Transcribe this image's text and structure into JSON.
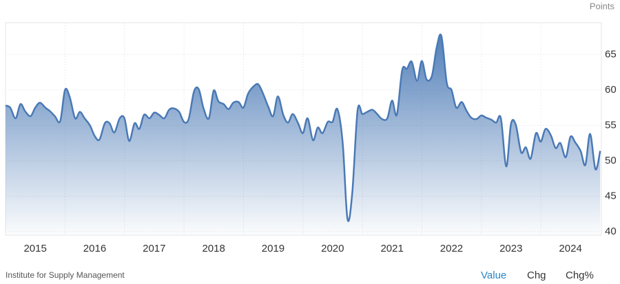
{
  "chart_data": {
    "type": "area",
    "y_unit": "Points",
    "source": "Institute for Supply Management",
    "buttons": [
      "Value",
      "Chg",
      "Chg%"
    ],
    "color": "#4a79b5",
    "grid": true,
    "xlim": [
      2014.5,
      2024.52
    ],
    "ylim": [
      39.5,
      69.5
    ],
    "xticks": [
      2015,
      2016,
      2017,
      2018,
      2019,
      2020,
      2021,
      2022,
      2023,
      2024
    ],
    "yticks": [
      40,
      45,
      50,
      55,
      60,
      65
    ],
    "x": [
      2014.5,
      2014.58,
      2014.67,
      2014.75,
      2014.83,
      2014.92,
      2015,
      2015.08,
      2015.17,
      2015.25,
      2015.33,
      2015.42,
      2015.5,
      2015.58,
      2015.67,
      2015.75,
      2015.83,
      2015.92,
      2016,
      2016.08,
      2016.17,
      2016.25,
      2016.33,
      2016.42,
      2016.5,
      2016.58,
      2016.67,
      2016.75,
      2016.83,
      2016.92,
      2017,
      2017.08,
      2017.17,
      2017.25,
      2017.33,
      2017.42,
      2017.5,
      2017.58,
      2017.67,
      2017.75,
      2017.83,
      2017.92,
      2018,
      2018.08,
      2018.17,
      2018.25,
      2018.33,
      2018.42,
      2018.5,
      2018.58,
      2018.67,
      2018.75,
      2018.83,
      2018.92,
      2019,
      2019.08,
      2019.17,
      2019.25,
      2019.33,
      2019.42,
      2019.5,
      2019.58,
      2019.67,
      2019.75,
      2019.83,
      2019.92,
      2020,
      2020.08,
      2020.17,
      2020.25,
      2020.33,
      2020.42,
      2020.5,
      2020.58,
      2020.67,
      2020.75,
      2020.83,
      2020.92,
      2021,
      2021.08,
      2021.17,
      2021.25,
      2021.33,
      2021.42,
      2021.5,
      2021.58,
      2021.67,
      2021.75,
      2021.83,
      2021.92,
      2022,
      2022.08,
      2022.17,
      2022.25,
      2022.33,
      2022.42,
      2022.5,
      2022.58,
      2022.67,
      2022.75,
      2022.83,
      2022.92,
      2023,
      2023.08,
      2023.17,
      2023.25,
      2023.33,
      2023.42,
      2023.5,
      2023.58,
      2023.67,
      2023.75,
      2023.83,
      2023.92,
      2024,
      2024.08,
      2024.17,
      2024.25,
      2024.33,
      2024.42,
      2024.5
    ],
    "values": [
      57.8,
      57.5,
      56.0,
      58.0,
      57.0,
      56.3,
      57.5,
      58.2,
      57.5,
      57.0,
      56.3,
      55.6,
      60.0,
      59.0,
      56.0,
      56.9,
      56.0,
      55.0,
      53.5,
      53.0,
      55.3,
      55.3,
      54.0,
      56.0,
      56.0,
      52.8,
      55.3,
      54.5,
      56.5,
      56.0,
      56.8,
      56.5,
      56.0,
      57.2,
      57.4,
      56.9,
      55.5,
      55.9,
      59.8,
      60.1,
      57.4,
      56.0,
      59.9,
      58.4,
      58.0,
      57.3,
      58.2,
      58.3,
      57.5,
      59.5,
      60.5,
      60.8,
      59.5,
      57.6,
      56.3,
      59.1,
      56.5,
      55.4,
      56.6,
      55.3,
      53.9,
      56.0,
      52.9,
      54.7,
      53.9,
      55.5,
      55.5,
      57.3,
      52.5,
      41.8,
      45.4,
      57.1,
      56.6,
      56.9,
      57.2,
      56.6,
      55.9,
      56.0,
      58.5,
      56.5,
      62.8,
      63.0,
      64.0,
      61.3,
      64.1,
      61.5,
      62.0,
      66.0,
      67.6,
      61.0,
      60.0,
      57.5,
      58.3,
      57.1,
      56.1,
      55.9,
      56.4,
      56.1,
      55.8,
      55.4,
      56.0,
      49.2,
      55.2,
      55.1,
      51.2,
      51.9,
      50.3,
      53.9,
      52.7,
      54.5,
      53.6,
      51.8,
      52.5,
      50.5,
      53.4,
      52.6,
      51.4,
      49.4,
      53.8,
      48.8,
      51.4
    ]
  }
}
